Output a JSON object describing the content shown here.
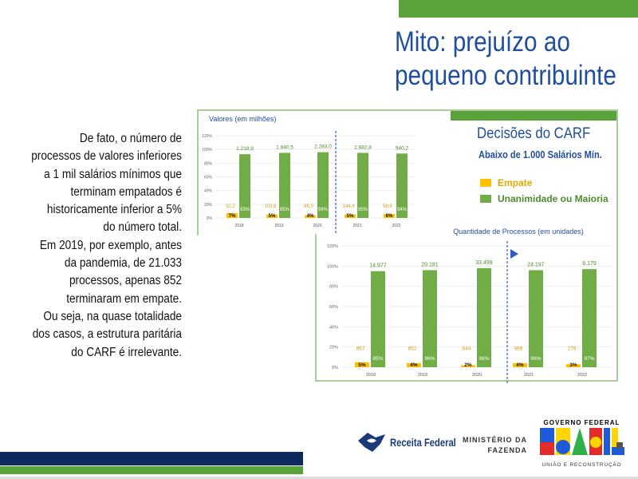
{
  "slide": {
    "title_line1": "Mito: prejuízo ao",
    "title_line2": "pequeno contribuinte",
    "body_lines": [
      "De fato, o número de",
      "processos de valores inferiores",
      "a 1 mil salários mínimos que",
      "terminam empatados é",
      "historicamente inferior a 5%",
      "do número total.",
      "Em 2019, por exemplo, antes",
      "da pandemia, de 21.033",
      "processos, apenas 852",
      "terminaram em empate.",
      "Ou seja, na quase totalidade",
      "dos casos, a estrutura paritária",
      "do CARF é irrelevante."
    ]
  },
  "legend": {
    "title": "Decisões do CARF",
    "subtitle": "Abaixo de 1.000 Salários Mín.",
    "empate": "Empate",
    "unanimidade": "Unanimidade ou Maioria"
  },
  "colors": {
    "green": "#70ad47",
    "yellow": "#ffc000",
    "blue": "#1f4e9c",
    "yellow_label": "#d4a017",
    "green_label": "#4e8a2c"
  },
  "logos": {
    "receita": "Receita Federal",
    "ministerio_line1": "MINISTÉRIO DA",
    "ministerio_line2": "FAZENDA",
    "gov_top": "GOVERNO FEDERAL",
    "gov_word": "BRASIL",
    "gov_bottom": "UNIÃO E RECONSTRUÇÃO"
  },
  "chart_data": [
    {
      "type": "bar",
      "title": "Valores (em milhões)",
      "categories": [
        "2018",
        "2019",
        "2020",
        "2021",
        "2022"
      ],
      "yticks": [
        "0%",
        "20%",
        "40%",
        "60%",
        "80%",
        "100%",
        "120%"
      ],
      "ylim": [
        0,
        120
      ],
      "series": [
        {
          "name": "Empate",
          "pct": [
            7,
            5,
            4,
            5,
            6
          ],
          "pct_labels": [
            "7%",
            "5%",
            "4%",
            "5%",
            "6%"
          ],
          "value_labels": [
            "92,2",
            "103,6",
            "86,0",
            "144,4",
            "56,6"
          ]
        },
        {
          "name": "Unanimidade ou Maioria",
          "pct": [
            93,
            95,
            96,
            95,
            94
          ],
          "pct_labels": [
            "93%",
            "95%",
            "96%",
            "95%",
            "94%"
          ],
          "value_labels": [
            "1.218,9",
            "1.840,5",
            "2.283,0",
            "2.882,8",
            "940,2"
          ]
        }
      ]
    },
    {
      "type": "bar",
      "title": "Quantidade de Processos (em unidades)",
      "categories": [
        "2018",
        "2019",
        "2020",
        "2021",
        "2022"
      ],
      "yticks": [
        "0%",
        "20%",
        "40%",
        "60%",
        "80%",
        "100%",
        "120%"
      ],
      "ylim": [
        0,
        120
      ],
      "series": [
        {
          "name": "Empate",
          "pct": [
            5,
            4,
            2,
            4,
            3
          ],
          "pct_labels": [
            "5%",
            "4%",
            "2%",
            "4%",
            "3%"
          ],
          "value_labels": [
            "857",
            "852",
            "644",
            "968",
            "279"
          ]
        },
        {
          "name": "Unanimidade ou Maioria",
          "pct": [
            95,
            96,
            98,
            96,
            97
          ],
          "pct_labels": [
            "95%",
            "96%",
            "98%",
            "96%",
            "97%"
          ],
          "value_labels": [
            "14.977",
            "20.181",
            "33.499",
            "24.197",
            "8.179"
          ]
        }
      ]
    }
  ]
}
